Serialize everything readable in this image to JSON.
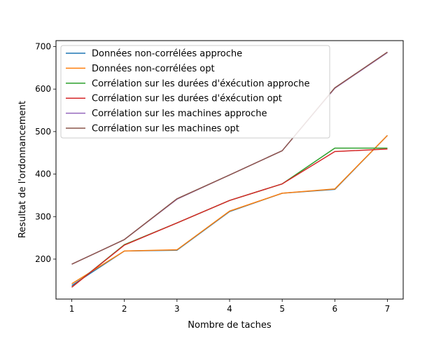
{
  "chart_data": {
    "type": "line",
    "title": "",
    "xlabel": "Nombre de taches",
    "ylabel": "Resultat de l'ordonnancement",
    "xlim": [
      0.7,
      7.3
    ],
    "ylim": [
      106,
      714
    ],
    "xticks": [
      1,
      2,
      3,
      4,
      5,
      6,
      7
    ],
    "yticks": [
      200,
      300,
      400,
      500,
      600,
      700
    ],
    "grid": false,
    "legend_position": "upper left",
    "x": [
      1,
      2,
      3,
      4,
      5,
      6,
      7
    ],
    "series": [
      {
        "name": "Données non-corrélées approche",
        "color": "#1f77b4",
        "values": [
          138,
          219,
          221,
          312,
          355,
          364,
          491
        ]
      },
      {
        "name": "Données non-corrélées opt",
        "color": "#ff7f0e",
        "values": [
          142,
          219,
          222,
          313,
          355,
          365,
          491
        ]
      },
      {
        "name": "Corrélation sur les durées d'éxécution approche",
        "color": "#2ca02c",
        "values": [
          134,
          234,
          285,
          338,
          377,
          461,
          461
        ]
      },
      {
        "name": "Corrélation sur les durées d'éxécution opt",
        "color": "#d62728",
        "values": [
          134,
          233,
          285,
          338,
          377,
          453,
          459
        ]
      },
      {
        "name": "Corrélation sur les machines approche",
        "color": "#9467bd",
        "values": [
          188,
          246,
          341,
          398,
          455,
          602,
          686
        ]
      },
      {
        "name": "Corrélation sur les machines opt",
        "color": "#8c564b",
        "values": [
          188,
          246,
          342,
          398,
          455,
          603,
          687
        ]
      }
    ]
  }
}
